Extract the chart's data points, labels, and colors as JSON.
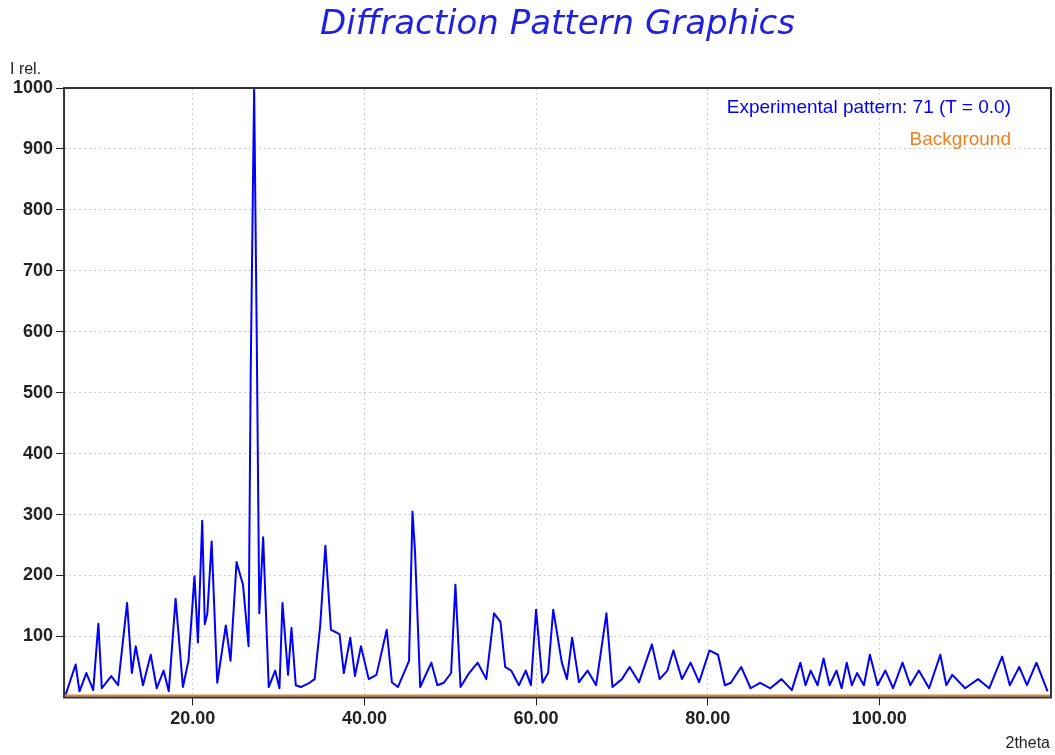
{
  "chart_data": {
    "type": "line",
    "title": "Diffraction Pattern Graphics",
    "xlabel": "2theta",
    "ylabel": "I rel.",
    "xlim": [
      5,
      120
    ],
    "xticks": [
      {
        "value": 20,
        "label": "20.00"
      },
      {
        "value": 40,
        "label": "40.00"
      },
      {
        "value": 60,
        "label": "60.00"
      },
      {
        "value": 80,
        "label": "80.00"
      },
      {
        "value": 100,
        "label": "100.00"
      }
    ],
    "ylim": [
      0,
      1000
    ],
    "yticks": [
      100,
      200,
      300,
      400,
      500,
      600,
      700,
      800,
      900,
      1000
    ],
    "grid": true,
    "legend": "top right",
    "marker": "none",
    "line_style": "solid",
    "series": [
      {
        "name": "Experimental pattern: 71 (T = 0.0)",
        "color": "#0000ff",
        "x": [
          5.2,
          6.35,
          6.8,
          7.6,
          8.4,
          9,
          9.4,
          10.5,
          11.3,
          12.35,
          12.9,
          13.35,
          14.2,
          15.1,
          15.8,
          16.6,
          17.2,
          18,
          18.85,
          19.5,
          20.2,
          20.6,
          21.1,
          21.4,
          21.7,
          22.2,
          22.85,
          23.85,
          24.4,
          25.1,
          25.85,
          26.5,
          26.75,
          27.15,
          27.45,
          27.75,
          28.2,
          28.85,
          29.6,
          30.1,
          30.45,
          31.1,
          31.5,
          32,
          32.6,
          33.6,
          34.2,
          34.85,
          35.45,
          36.1,
          37.1,
          37.6,
          38.35,
          38.9,
          39.6,
          40.5,
          41.4,
          42.6,
          43.2,
          43.9,
          45.2,
          45.6,
          45.9,
          46.5,
          47.8,
          48.5,
          49.25,
          50.1,
          50.6,
          51.2,
          52.2,
          53.2,
          54.2,
          55.1,
          55.85,
          56.4,
          57.1,
          58,
          58.8,
          59.4,
          60,
          60.75,
          61.4,
          62,
          63,
          63.6,
          64.2,
          65,
          66,
          67,
          68.2,
          68.9,
          70,
          70.9,
          72,
          73.5,
          74.4,
          75.3,
          76,
          77,
          78,
          79,
          80.2,
          81.2,
          82,
          82.7,
          83.9,
          85,
          86.1,
          87.3,
          88.6,
          89.8,
          90.8,
          91.4,
          92,
          92.8,
          93.5,
          94.2,
          95,
          95.6,
          96.2,
          96.8,
          97.4,
          98.2,
          98.9,
          99.8,
          100.7,
          101.6,
          102.7,
          103.6,
          104.6,
          105.8,
          107.1,
          107.8,
          108.5,
          110,
          111.5,
          112.8,
          114.3,
          115.2,
          116.3,
          117.2,
          118.3,
          119.6
        ],
        "values": [
          5,
          54,
          10,
          40,
          12,
          121,
          15,
          35,
          20,
          155,
          40,
          84,
          20,
          70,
          15,
          44,
          10,
          162,
          17,
          60,
          199,
          90,
          290,
          120,
          138,
          256,
          24,
          118,
          60,
          222,
          185,
          84,
          535,
          1000,
          596,
          138,
          263,
          17,
          44,
          15,
          155,
          37,
          114,
          20,
          17,
          24,
          30,
          118,
          249,
          111,
          104,
          40,
          98,
          35,
          84,
          30,
          37,
          111,
          25,
          17,
          60,
          305,
          238,
          17,
          57,
          20,
          24,
          40,
          185,
          17,
          40,
          57,
          30,
          138,
          124,
          50,
          44,
          20,
          44,
          20,
          144,
          24,
          40,
          144,
          57,
          30,
          98,
          25,
          44,
          20,
          138,
          17,
          30,
          50,
          25,
          87,
          30,
          44,
          77,
          30,
          57,
          25,
          77,
          70,
          20,
          24,
          50,
          15,
          24,
          15,
          30,
          12,
          57,
          20,
          44,
          20,
          64,
          20,
          44,
          15,
          57,
          20,
          40,
          20,
          70,
          20,
          44,
          15,
          57,
          20,
          44,
          15,
          70,
          20,
          37,
          15,
          30,
          15,
          67,
          20,
          50,
          20,
          57,
          10
        ]
      },
      {
        "name": "Background",
        "color": "#f08020",
        "x": [
          5,
          120
        ],
        "values": [
          3,
          3
        ]
      }
    ]
  }
}
